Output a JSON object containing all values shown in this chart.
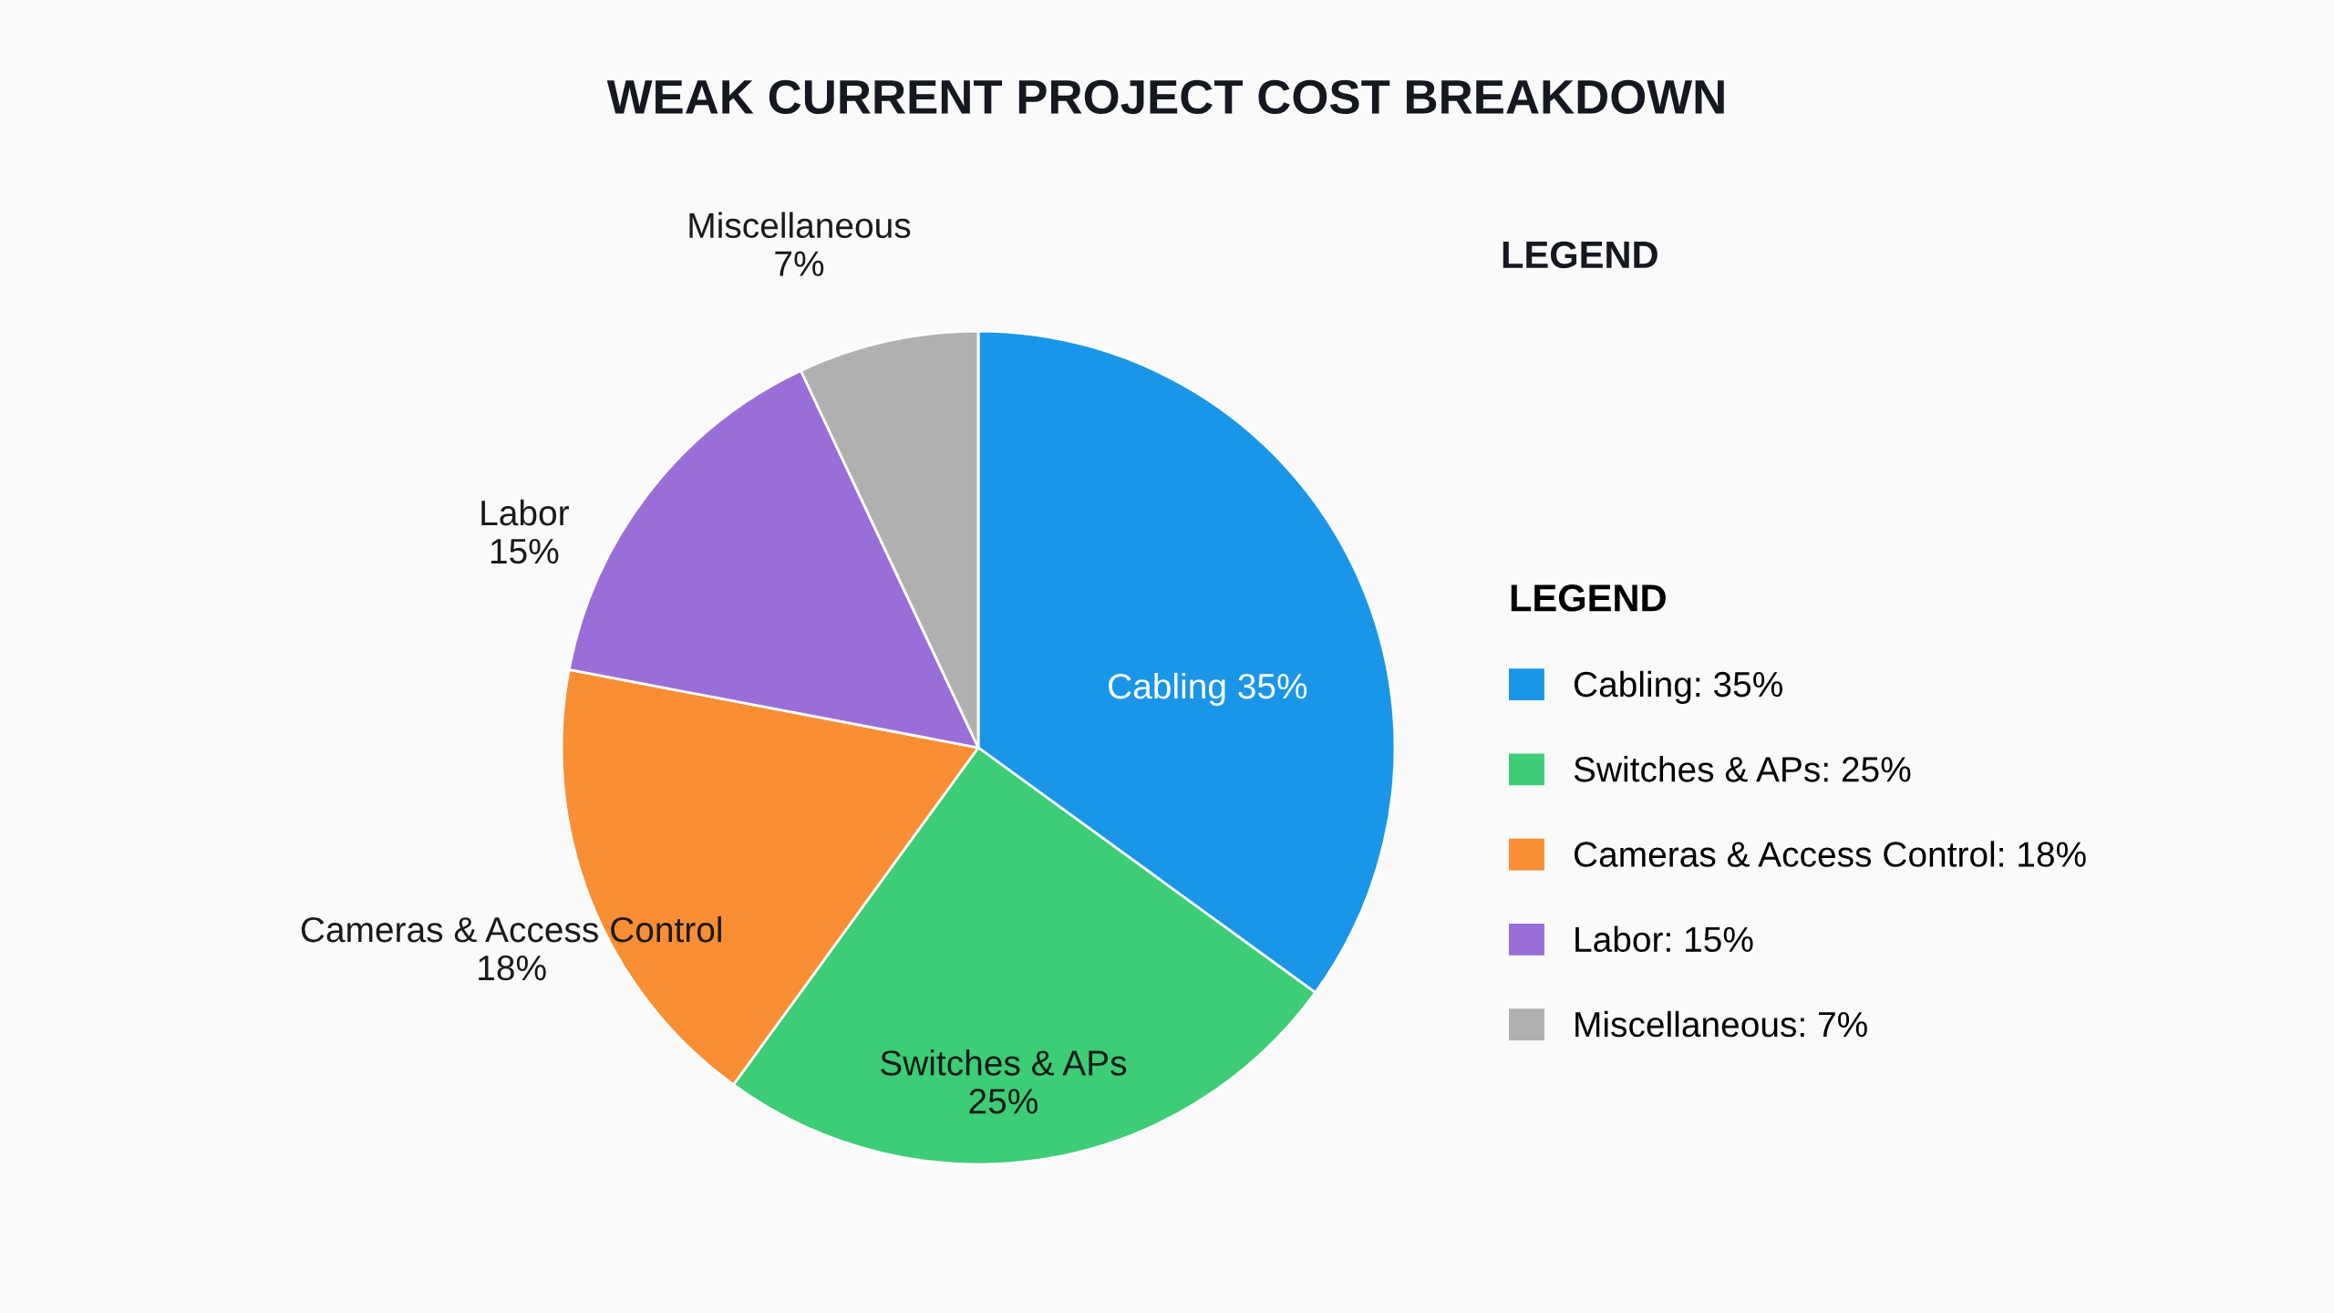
{
  "chart_data": {
    "type": "pie",
    "title": "WEAK CURRENT PROJECT COST BREAKDOWN",
    "categories": [
      "Cabling: 35%",
      "Switches & APs: 25%",
      "Cameras & Access Control: 18%",
      "Labor: 15%",
      "Miscellaneous: 7%"
    ],
    "values": [
      35,
      25,
      18,
      15,
      7
    ],
    "colors": [
      "#1a96e8",
      "#3ccd76",
      "#f98e34",
      "#9a6ed8",
      "#b0b0b0"
    ],
    "value_labels": [
      "Cabling 35%",
      "Switches & APs\n25%",
      "Cameras & Access Control\n18%",
      "Labor\n15%",
      "Miscellaneous\n7%"
    ],
    "legend_title": "LEGEND",
    "legend": "right",
    "annotations": [
      "LEGEND"
    ]
  }
}
